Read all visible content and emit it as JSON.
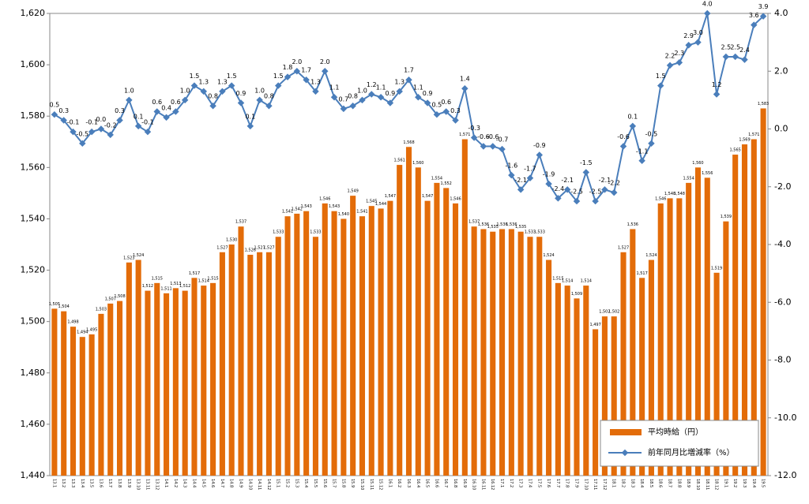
{
  "chart_data": {
    "type": "bar_line",
    "categories": [
      "13.1",
      "13.2",
      "13.3",
      "13.4",
      "13.5",
      "13.6",
      "13.7",
      "13.8",
      "13.9",
      "13.10",
      "13.11",
      "13.12",
      "14.1",
      "14.2",
      "14.3",
      "14.4",
      "14.5",
      "14.6",
      "14.7",
      "14.8",
      "14.9",
      "14.10",
      "14.11",
      "14.12",
      "15.1",
      "15.2",
      "15.3",
      "15.4",
      "15.5",
      "15.6",
      "15.7",
      "15.8",
      "15.9",
      "15.10",
      "15.11",
      "15.12",
      "16.1",
      "16.2",
      "16.3",
      "16.4",
      "16.5",
      "16.6",
      "16.7",
      "16.8",
      "16.9",
      "16.10",
      "16.11",
      "16.12",
      "17.1",
      "17.2",
      "17.3",
      "17.4",
      "17.5",
      "17.6",
      "17.7",
      "17.8",
      "17.9",
      "17.10",
      "17.11",
      "17.12",
      "18.1",
      "18.2",
      "18.3",
      "18.4",
      "18.5",
      "18.6",
      "18.7",
      "18.8",
      "18.9",
      "18.10",
      "18.11",
      "18.12",
      "19.1",
      "19.2",
      "19.3",
      "19.4",
      "19.5"
    ],
    "series": [
      {
        "name": "平均時給（円）",
        "color": "#e36c09",
        "values": [
          1505,
          1504,
          1498,
          1494,
          1495,
          1503,
          1507,
          1508,
          1523,
          1524,
          1512,
          1515,
          1511,
          1513,
          1512,
          1517,
          1514,
          1515,
          1527,
          1530,
          1537,
          1526,
          1527,
          1527,
          1533,
          1541,
          1542,
          1543,
          1533,
          1546,
          1543,
          1540,
          1549,
          1541,
          1545,
          1544,
          1547,
          1561,
          1568,
          1560,
          1547,
          1554,
          1552,
          1546,
          1571,
          1537,
          1536,
          1535,
          1536,
          1536,
          1535,
          1533,
          1533,
          1524,
          1515,
          1514,
          1509,
          1514,
          1497,
          1502,
          1502,
          1527,
          1536,
          1517,
          1524,
          1546,
          1548,
          1548,
          1554,
          1560,
          1556,
          1519,
          1539,
          1565,
          1569,
          1571,
          1583
        ],
        "value_labels": [
          "1,505",
          "1,504",
          "1,498",
          "1,494",
          "1,495",
          "1,503",
          "1,507",
          "1,508",
          "1,523",
          "1,524",
          "1,512",
          "1,515",
          "1,511",
          "1,513",
          "1,512",
          "1,517",
          "1,514",
          "1,515",
          "1,527",
          "1,530",
          "1,537",
          "1,526",
          "1,527",
          "1,527",
          "1,533",
          "1,541",
          "1,542",
          "1,543",
          "1,533",
          "1,546",
          "1,543",
          "1,540",
          "1,549",
          "1,541",
          "1,545",
          "1,544",
          "1,547",
          "1,561",
          "1,568",
          "1,560",
          "1,547",
          "1,554",
          "1,552",
          "1,546",
          "1,571",
          "1,537",
          "1,536",
          "1,535",
          "1,536",
          "1,536",
          "1,535",
          "1,533",
          "1,533",
          "1,524",
          "1,515",
          "1,514",
          "1,509",
          "1,514",
          "1,497",
          "1,502",
          "1,502",
          "1,527",
          "1,536",
          "1,517",
          "1,524",
          "1,546",
          "1,548",
          "1,548",
          "1,554",
          "1,560",
          "1,556",
          "1,519",
          "1,539",
          "1,565",
          "1,569",
          "1,571",
          "1,583"
        ]
      },
      {
        "name": "前年同月比増減率（%）",
        "color": "#4a7ebb",
        "axis": "y2",
        "values": [
          0.5,
          0.3,
          -0.1,
          -0.5,
          -0.1,
          0.0,
          -0.2,
          0.3,
          1.0,
          0.1,
          -0.1,
          0.6,
          0.4,
          0.6,
          1.0,
          1.5,
          1.3,
          0.8,
          1.3,
          1.5,
          0.9,
          0.1,
          1.0,
          0.8,
          1.5,
          1.8,
          2.0,
          1.7,
          1.3,
          2.0,
          1.1,
          0.7,
          0.8,
          1.0,
          1.2,
          1.1,
          0.9,
          1.3,
          1.7,
          1.1,
          0.9,
          0.5,
          0.6,
          0.3,
          1.4,
          -0.3,
          -0.6,
          -0.6,
          -0.7,
          -1.6,
          -2.1,
          -1.7,
          -0.9,
          -1.9,
          -2.4,
          -2.1,
          -2.5,
          -1.5,
          -2.5,
          -2.1,
          -2.2,
          -0.6,
          0.1,
          -1.1,
          -0.5,
          1.5,
          2.2,
          2.3,
          2.9,
          3.0,
          4.0,
          1.2,
          2.5,
          2.5,
          2.4,
          3.6,
          3.9
        ],
        "value_labels": [
          "0.5",
          "0.3",
          "-0.1",
          "-0.5",
          "-0.1",
          "0.0",
          "-0.2",
          "0.3",
          "1.0",
          "0.1",
          "-0.1",
          "0.6",
          "0.4",
          "0.6",
          "1.0",
          "1.5",
          "1.3",
          "0.8",
          "1.3",
          "1.5",
          "0.9",
          "0.1",
          "1.0",
          "0.8",
          "1.5",
          "1.8",
          "2.0",
          "1.7",
          "1.3",
          "2.0",
          "1.1",
          "0.7",
          "0.8",
          "1.0",
          "1.2",
          "1.1",
          "0.9",
          "1.3",
          "1.7",
          "1.1",
          "0.9",
          "0.5",
          "0.6",
          "0.3",
          "1.4",
          "-0.3",
          "-0.6",
          "-0.6",
          "-0.7",
          "-1.6",
          "-2.1",
          "-1.7",
          "-0.9",
          "-1.9",
          "-2.4",
          "-2.1",
          "-2.5",
          "-1.5",
          "-2.5",
          "-2.1",
          "-2.2",
          "-0.6",
          "0.1",
          "-1.1",
          "-0.5",
          "1.5",
          "2.2",
          "2.3",
          "2.9",
          "3.0",
          "4.0",
          "1.2",
          "2.5",
          "2.5",
          "2.4",
          "3.6",
          "3.9"
        ]
      }
    ],
    "ylim": [
      1440,
      1620
    ],
    "yticks": [
      {
        "value": 1440,
        "label": "1,440"
      },
      {
        "value": 1460,
        "label": "1,460"
      },
      {
        "value": 1480,
        "label": "1,480"
      },
      {
        "value": 1500,
        "label": "1,500"
      },
      {
        "value": 1520,
        "label": "1,520"
      },
      {
        "value": 1540,
        "label": "1,540"
      },
      {
        "value": 1560,
        "label": "1,560"
      },
      {
        "value": 1580,
        "label": "1,580"
      },
      {
        "value": 1600,
        "label": "1,600"
      },
      {
        "value": 1620,
        "label": "1,620"
      }
    ],
    "y2lim": [
      -12,
      4
    ],
    "y2ticks": [
      {
        "value": -12,
        "label": "-12.0"
      },
      {
        "value": -10,
        "label": "-10.0"
      },
      {
        "value": -8,
        "label": "-8.0"
      },
      {
        "value": -6,
        "label": "-6.0"
      },
      {
        "value": -4,
        "label": "-4.0"
      },
      {
        "value": -2,
        "label": "-2.0"
      },
      {
        "value": 0,
        "label": "0.0"
      },
      {
        "value": 2,
        "label": "2.0"
      },
      {
        "value": 4,
        "label": "4.0"
      }
    ],
    "legend": "lower right"
  }
}
